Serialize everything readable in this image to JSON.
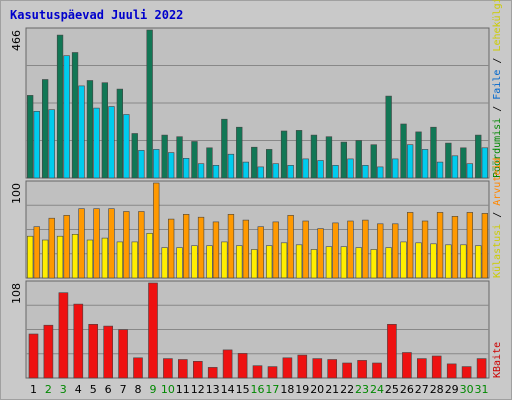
{
  "chart_data": {
    "title": "Kasutuspäevad Juuli 2022",
    "type": "bar",
    "x": [
      "1",
      "2",
      "3",
      "4",
      "5",
      "6",
      "7",
      "8",
      "9",
      "10",
      "11",
      "12",
      "13",
      "14",
      "15",
      "16",
      "17",
      "18",
      "19",
      "20",
      "21",
      "22",
      "23",
      "24",
      "25",
      "26",
      "27",
      "28",
      "29",
      "30",
      "31"
    ],
    "weekend_days": [
      "2",
      "3",
      "9",
      "10",
      "16",
      "17",
      "23",
      "24",
      "30",
      "31"
    ],
    "colors": {
      "plot_bg": "#c0c0c0",
      "frame_bg": "#c9c9c9",
      "grid": "#888888",
      "title": "#0000cc",
      "weekday_label": "#000000",
      "weekend_label": "#008800"
    },
    "panels": [
      {
        "id": "top",
        "ylabel": "466",
        "ymax": 466,
        "legend": [
          {
            "text": "Pöördumisi",
            "color": "#008800"
          },
          {
            "text": " / ",
            "color": "#000000"
          },
          {
            "text": "Faile",
            "color": "#0066cc"
          },
          {
            "text": " / ",
            "color": "#000000"
          },
          {
            "text": "Lehekülgi",
            "color": "#cccc00"
          }
        ],
        "series": [
          {
            "name": "Pöördumisi",
            "color": "#117755",
            "values": [
              260,
              310,
              450,
              395,
              307,
              300,
              280,
              140,
              466,
              135,
              130,
              115,
              95,
              185,
              160,
              97,
              90,
              148,
              150,
              135,
              130,
              113,
              118,
              105,
              258,
              170,
              145,
              160,
              110,
              95,
              135
            ]
          },
          {
            "name": "Faile",
            "color": "#00ccee",
            "values": [
              210,
              215,
              385,
              290,
              220,
              225,
              200,
              87,
              90,
              80,
              62,
              45,
              40,
              75,
              50,
              35,
              45,
              40,
              60,
              55,
              40,
              60,
              40,
              35,
              60,
              105,
              90,
              50,
              70,
              45,
              95
            ]
          }
        ]
      },
      {
        "id": "mid",
        "ylabel": "100",
        "ymax": 100,
        "legend": [
          {
            "text": "Külastusi",
            "color": "#cccc00"
          },
          {
            "text": " / ",
            "color": "#000000"
          },
          {
            "text": "Arvuteid",
            "color": "#ff8800"
          }
        ],
        "series": [
          {
            "name": "Külastusi",
            "color": "#ffee00",
            "values": [
              44,
              40,
              44,
              46,
              40,
              42,
              38,
              38,
              47,
              32,
              32,
              34,
              34,
              38,
              34,
              30,
              34,
              37,
              35,
              30,
              33,
              33,
              32,
              30,
              32,
              38,
              37,
              36,
              35,
              35,
              34
            ]
          },
          {
            "name": "Arvuteid",
            "color": "#ff9900",
            "values": [
              54,
              63,
              66,
              73,
              73,
              73,
              70,
              70,
              100,
              62,
              67,
              64,
              59,
              67,
              61,
              54,
              59,
              66,
              60,
              52,
              58,
              60,
              61,
              57,
              57,
              69,
              60,
              69,
              65,
              69,
              68
            ]
          }
        ]
      },
      {
        "id": "bottom",
        "ylabel": "108",
        "ymax": 108,
        "legend": [
          {
            "text": "KBaite",
            "color": "#cc0000"
          }
        ],
        "series": [
          {
            "name": "KBaite",
            "color": "#ee1111",
            "values": [
              50,
              60,
              97,
              84,
              61,
              59,
              55,
              23,
              108,
              22,
              21,
              19,
              12,
              32,
              28,
              14,
              13,
              23,
              26,
              22,
              21,
              17,
              20,
              17,
              61,
              29,
              22,
              25,
              16,
              13,
              22
            ]
          }
        ]
      }
    ]
  }
}
